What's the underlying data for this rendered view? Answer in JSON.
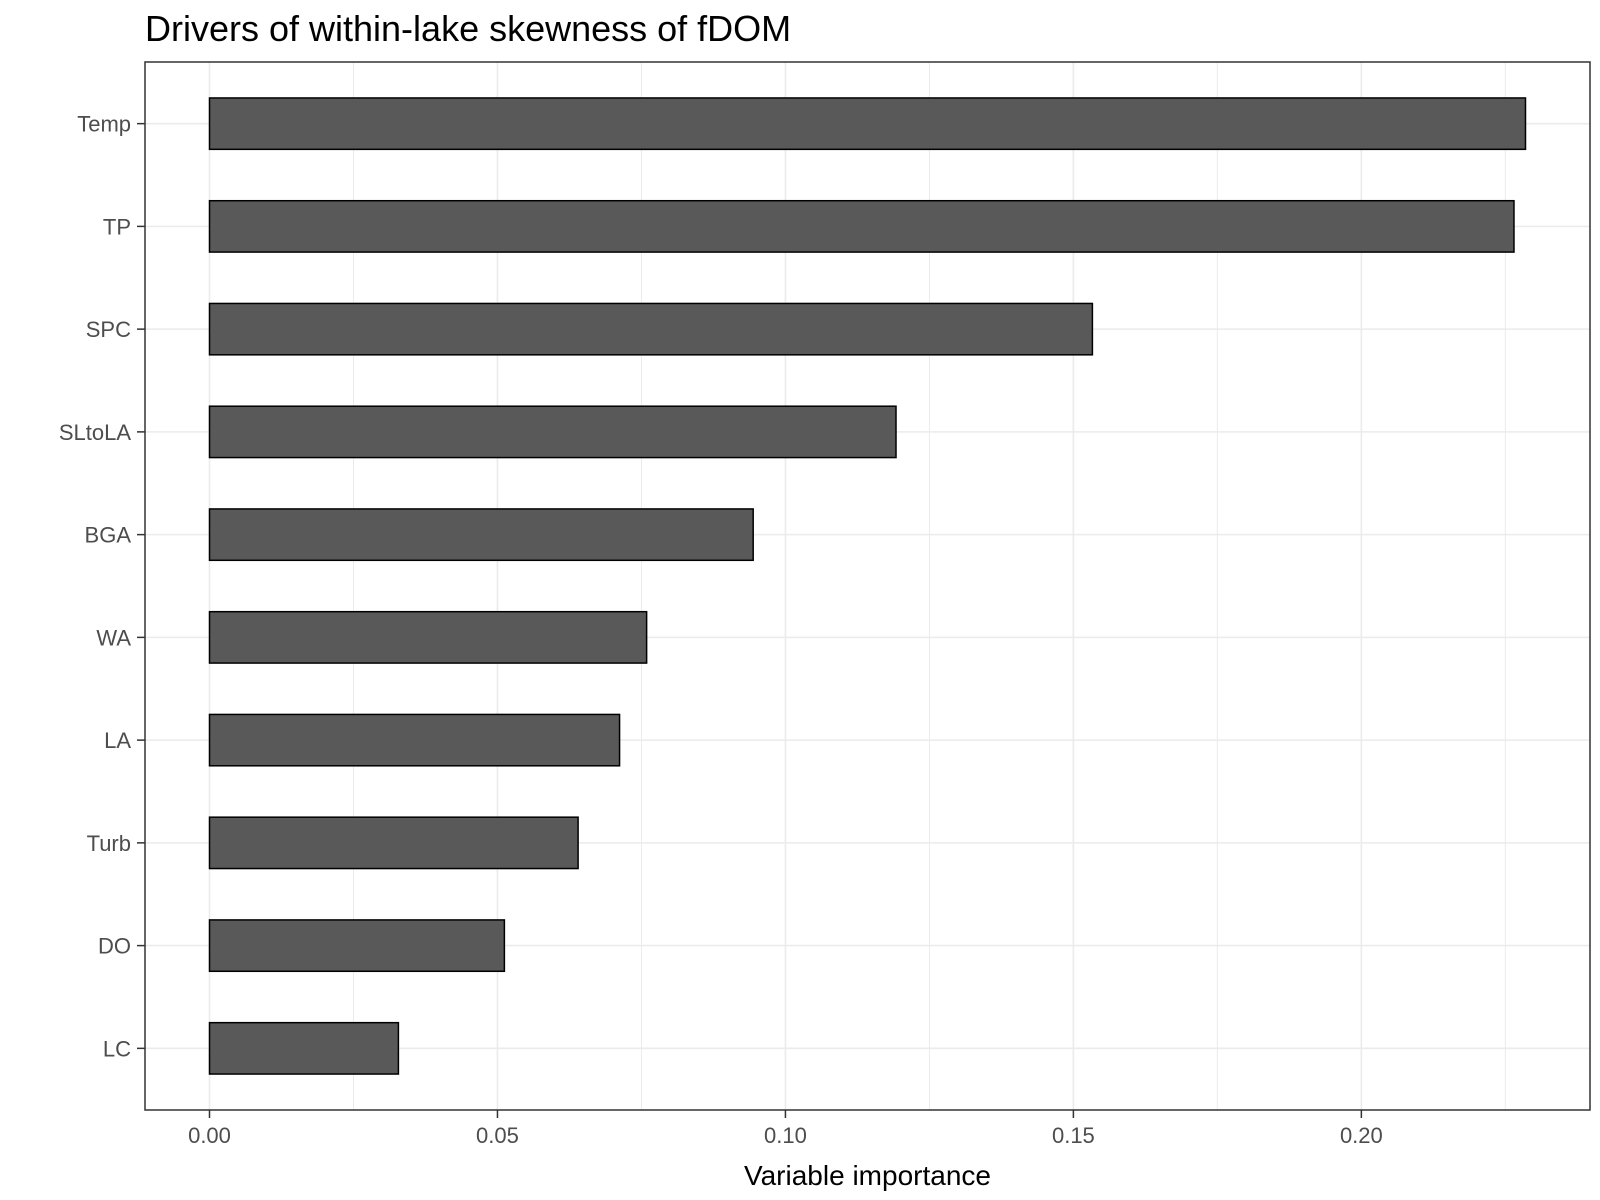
{
  "chart_data": {
    "type": "bar",
    "orientation": "horizontal",
    "title": "Drivers of within-lake skewness of fDOM",
    "xlabel": "Variable importance",
    "ylabel": "",
    "categories": [
      "Temp",
      "TP",
      "SPC",
      "SLtoLA",
      "BGA",
      "WA",
      "LA",
      "Turb",
      "DO",
      "LC"
    ],
    "values": [
      0.2285,
      0.2265,
      0.1533,
      0.1192,
      0.0944,
      0.0759,
      0.0712,
      0.064,
      0.0512,
      0.0328
    ],
    "xlim": [
      -0.0112,
      0.2397
    ],
    "xticks": [
      0.0,
      0.05,
      0.1,
      0.15,
      0.2
    ],
    "xtick_labels": [
      "0.00",
      "0.05",
      "0.10",
      "0.15",
      "0.20"
    ],
    "grid": true,
    "legend": "none",
    "bar_color": "#595959",
    "bar_outline_color": "#000000",
    "grid_color": "#ebebeb",
    "panel_border_color": "#333333"
  }
}
